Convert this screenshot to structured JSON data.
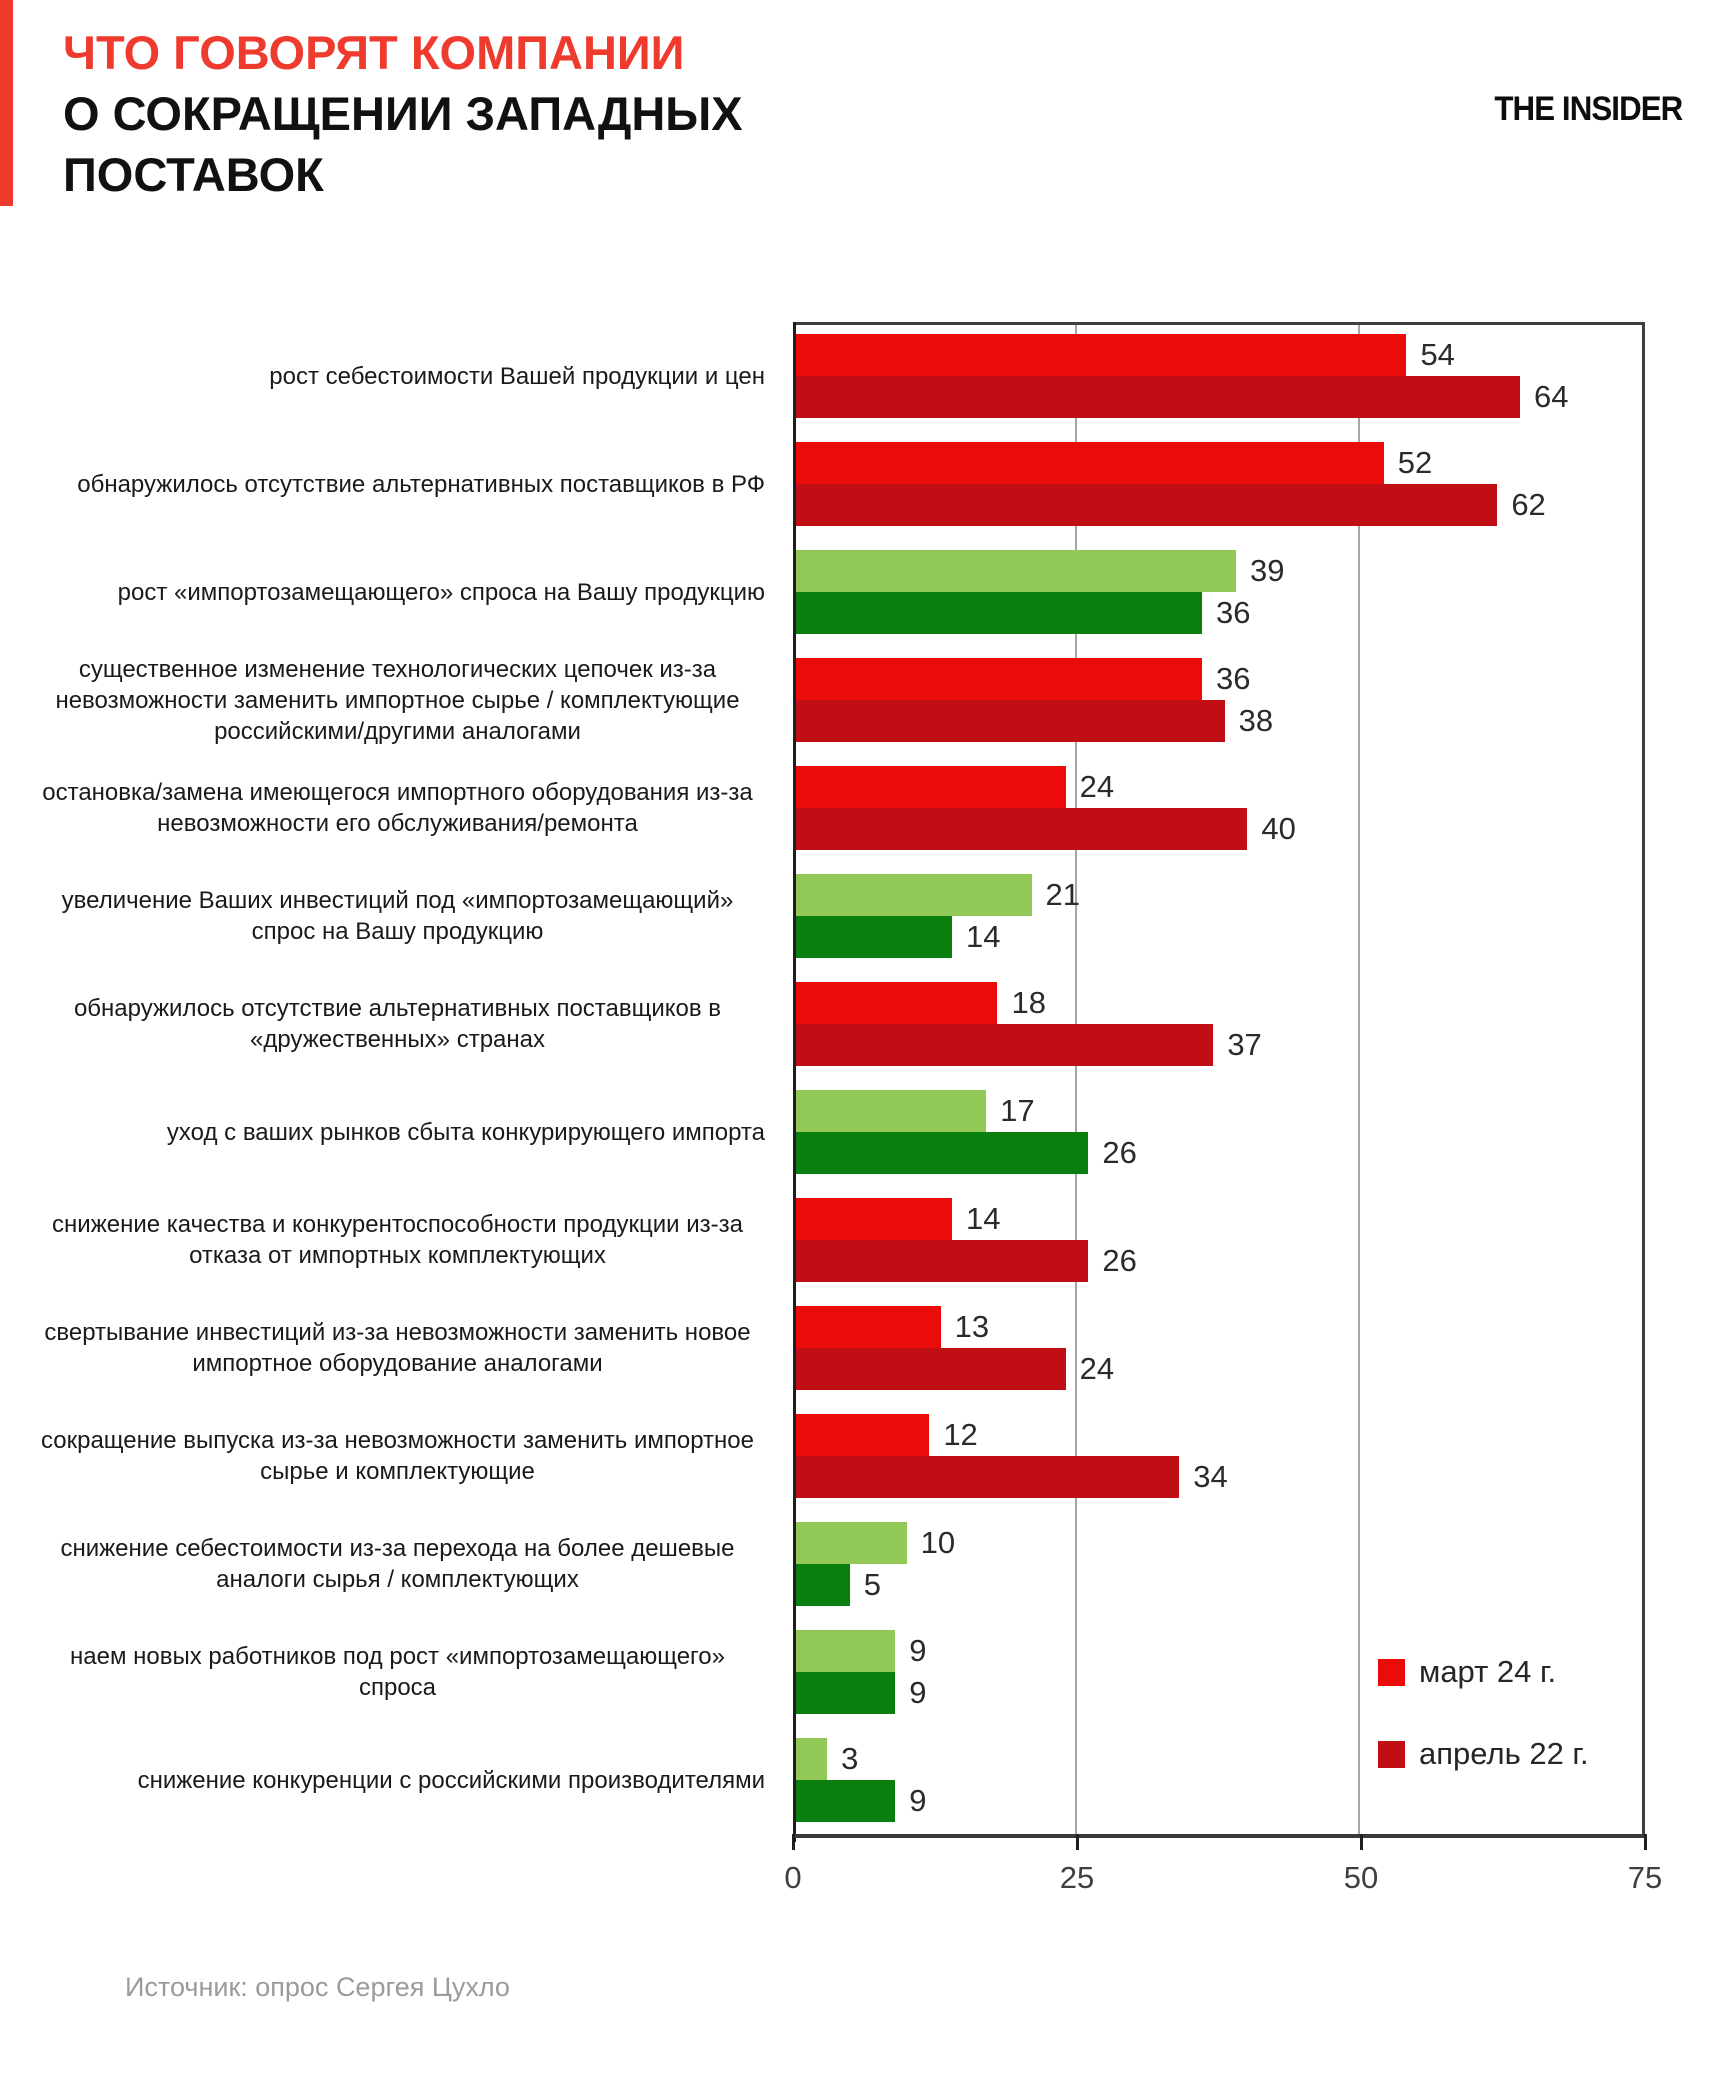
{
  "header": {
    "title_line1": "ЧТО ГОВОРЯТ КОМПАНИИ",
    "title_line2": "О СОКРАЩЕНИИ ЗАПАДНЫХ ПОСТАВОК",
    "logo": "THE INSIDER"
  },
  "footer": {
    "source": "Источник: опрос Сергея Цухло"
  },
  "colors": {
    "accent_red": "#ef3b2e",
    "title_red": "#ef3b2e",
    "palettes": {
      "red": [
        "#ec0b0b",
        "#c10e14"
      ],
      "green": [
        "#92c956",
        "#0a7f10"
      ]
    },
    "gridline": "#a6a6a6"
  },
  "chart_data": {
    "type": "bar",
    "orientation": "horizontal",
    "xlim": [
      0,
      75
    ],
    "x_ticks": [
      0,
      25,
      50,
      75
    ],
    "grid": "vertical gridlines at 25 and 50",
    "legend_position": "inside bottom-right",
    "series_names": [
      "март 24 г.",
      "апрель 22 г."
    ],
    "legend": [
      {
        "label": "март 24 г.",
        "color": "#ec0b0b"
      },
      {
        "label": "апрель 22 г.",
        "color": "#c10e14"
      }
    ],
    "rows": [
      {
        "category": "рост себестоимости Вашей продукции и цен",
        "march24": 54,
        "april22": 64,
        "palette": "red"
      },
      {
        "category": "обнаружилось отсутствие альтернативных поставщиков в РФ",
        "march24": 52,
        "april22": 62,
        "palette": "red"
      },
      {
        "category": "рост «импортозамещающего» спроса на Вашу продукцию",
        "march24": 39,
        "april22": 36,
        "palette": "green"
      },
      {
        "category": "существенное изменение технологических цепочек из-за невозможности заменить импортное сырье / комплектующие российскими/другими аналогами",
        "march24": 36,
        "april22": 38,
        "palette": "red"
      },
      {
        "category": "остановка/замена имеющегося импортного оборудования из-за невозможности его обслуживания/ремонта",
        "march24": 24,
        "april22": 40,
        "palette": "red"
      },
      {
        "category": "увеличение Ваших инвестиций под «импортозамещающий» спрос на Вашу продукцию",
        "march24": 21,
        "april22": 14,
        "palette": "green"
      },
      {
        "category": "обнаружилось отсутствие альтернативных поставщиков в «дружественных» странах",
        "march24": 18,
        "april22": 37,
        "palette": "red"
      },
      {
        "category": "уход с ваших рынков сбыта конкурирующего импорта",
        "march24": 17,
        "april22": 26,
        "palette": "green"
      },
      {
        "category": "снижение качества и конкурентоспособности продукции из-за отказа от импортных комплектующих",
        "march24": 14,
        "april22": 26,
        "palette": "red"
      },
      {
        "category": "свертывание инвестиций из-за невозможности заменить новое импортное оборудование аналогами",
        "march24": 13,
        "april22": 24,
        "palette": "red"
      },
      {
        "category": "сокращение выпуска из-за невозможности заменить импортное сырье и комплектующие",
        "march24": 12,
        "april22": 34,
        "palette": "red"
      },
      {
        "category": "снижение себестоимости из-за перехода на более дешевые аналоги сырья / комплектующих",
        "march24": 10,
        "april22": 5,
        "palette": "green"
      },
      {
        "category": "наем новых работников под рост «импортозамещающего» спроса",
        "march24": 9,
        "april22": 9,
        "palette": "green"
      },
      {
        "category": "снижение конкуренции с российскими производителями",
        "march24": 3,
        "april22": 9,
        "palette": "green"
      }
    ]
  }
}
